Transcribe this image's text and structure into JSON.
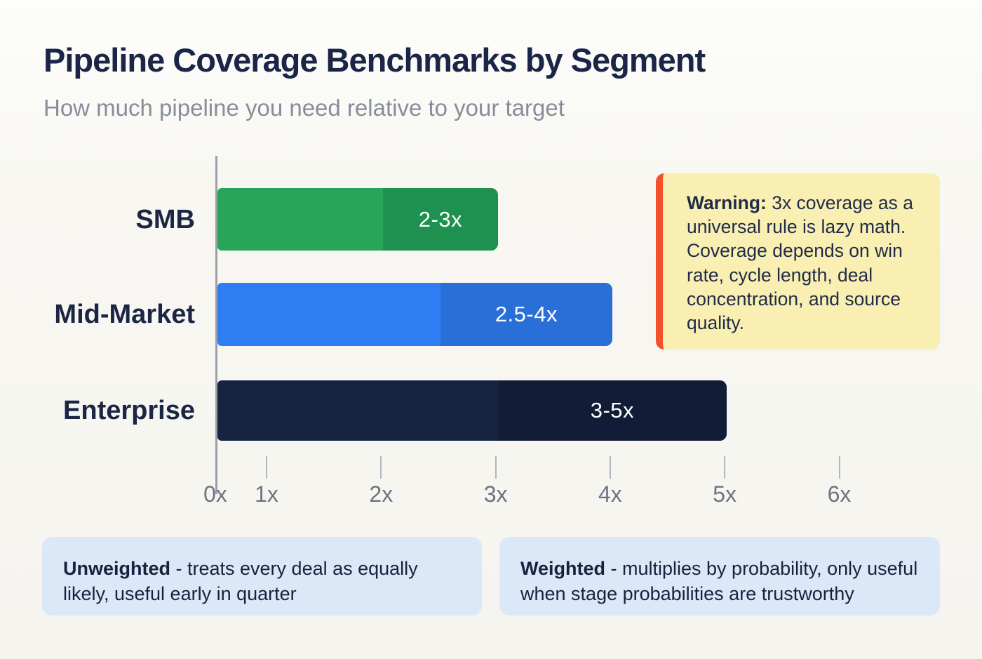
{
  "header": {
    "title": "Pipeline Coverage Benchmarks by Segment",
    "subtitle": "How much pipeline you need relative to your target"
  },
  "chart_data": {
    "type": "bar",
    "orientation": "horizontal",
    "title": "Pipeline Coverage Benchmarks by Segment",
    "xlim": [
      0,
      6
    ],
    "grid": false,
    "x_tick_values": [
      0,
      1,
      2,
      3,
      4,
      5,
      6
    ],
    "x_tick_labels": [
      "0x",
      "1x",
      "2x",
      "3x",
      "4x",
      "5x",
      "6x"
    ],
    "categories": [
      "SMB",
      "Mid-Market",
      "Enterprise"
    ],
    "series": [
      {
        "category": "SMB",
        "bar_start": 0,
        "bar_end": 3,
        "highlight_start": 2,
        "highlight_end": 3,
        "range_label": "2-3x",
        "base_color": "#27a65a",
        "highlight_color": "#1e9150"
      },
      {
        "category": "Mid-Market",
        "bar_start": 0,
        "bar_end": 4,
        "highlight_start": 2.5,
        "highlight_end": 4,
        "range_label": "2.5-4x",
        "base_color": "#2f7df2",
        "highlight_color": "#2a6fd8"
      },
      {
        "category": "Enterprise",
        "bar_start": 0,
        "bar_end": 5,
        "highlight_start": 3,
        "highlight_end": 5,
        "range_label": "3-5x",
        "base_color": "#162440",
        "highlight_color": "#111d36"
      }
    ]
  },
  "warning_callout": {
    "lead": "Warning:",
    "text": " 3x coverage as a universal rule is lazy math. Coverage depends on win rate, cycle length, deal concentration, and source quality.",
    "bg_color": "#f9efb2",
    "accent_color": "#f4502b",
    "text_color": "#1f2b48"
  },
  "footnotes": [
    {
      "lead": "Unweighted",
      "text": " - treats every deal as equally likely, useful early in quarter"
    },
    {
      "lead": "Weighted",
      "text": " - multiplies by probability, only useful when stage probabilities are trustworthy"
    }
  ],
  "colors": {
    "background": "#f8f7f2",
    "title": "#1b2547",
    "subtitle": "#878d99",
    "axis_line": "#9aa0aa",
    "tick": "#b1b6bd",
    "tick_label": "#6d7480",
    "category_label": "#1b2645",
    "bar_value_label": "#ffffff",
    "note_bg": "#dbe8f7",
    "note_text": "#15233f"
  }
}
